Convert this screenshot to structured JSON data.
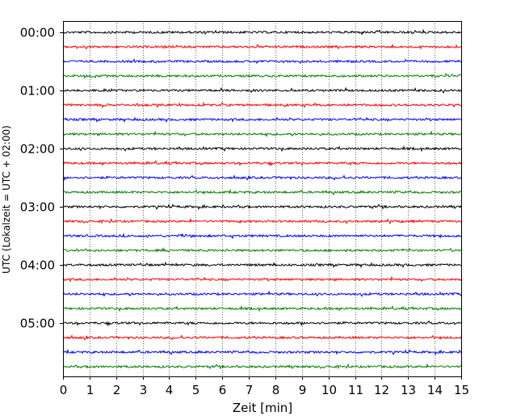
{
  "chart_data": {
    "type": "line",
    "title": "",
    "xlabel": "Zeit  [min]",
    "ylabel": "UTC (Lokalzeit = UTC + 02:00)",
    "xlim": [
      0,
      15
    ],
    "x_ticks": [
      0,
      1,
      2,
      3,
      4,
      5,
      6,
      7,
      8,
      9,
      10,
      11,
      12,
      13,
      14,
      15
    ],
    "y_ticks": [
      "00:00",
      "01:00",
      "02:00",
      "03:00",
      "04:00",
      "05:00"
    ],
    "trace_count": 24,
    "trace_interval_min": 15,
    "trace_colors": [
      "#000000",
      "#ff0000",
      "#0000ff",
      "#008000"
    ],
    "grid": "vertical dotted",
    "legend": "none"
  }
}
